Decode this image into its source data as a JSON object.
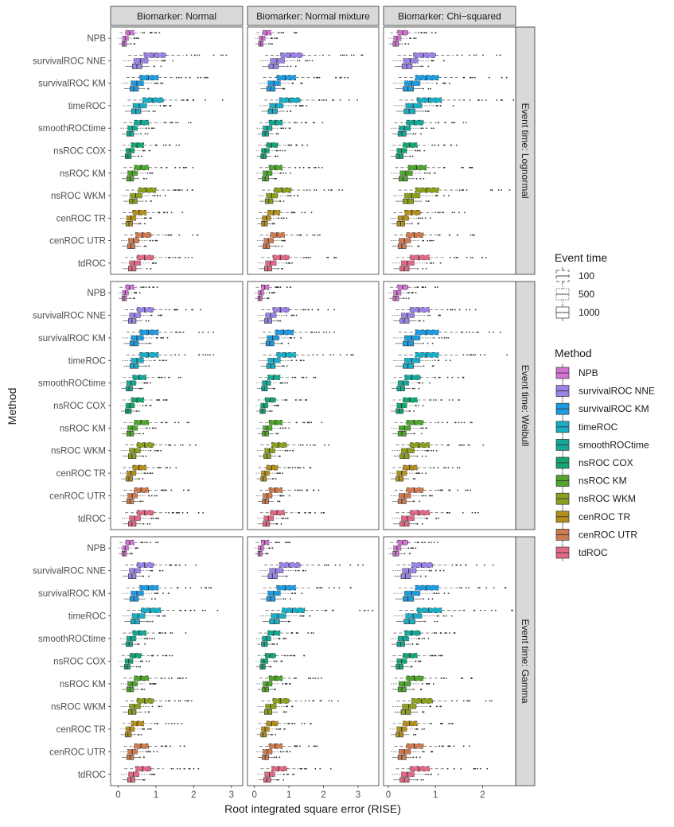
{
  "chart_data": {
    "type": "boxplot",
    "xlabel": "Root integrated square error (RISE)",
    "ylabel": "Method",
    "columns": [
      "Biomarker: Normal",
      "Biomarker: Normal mixture",
      "Biomarker: Chi−squared"
    ],
    "rows": [
      "Event time: Lognormal",
      "Event time: Weibull",
      "Event time: Gamma"
    ],
    "methods": [
      "NPB",
      "survivalROC NNE",
      "survivalROC KM",
      "timeROC",
      "smoothROCtime",
      "nsROC COX",
      "nsROC KM",
      "nsROC WKM",
      "cenROC TR",
      "cenROC UTR",
      "tdROC"
    ],
    "x_axes": [
      {
        "xlim": [
          -0.2,
          3.3
        ],
        "ticks": [
          0,
          1,
          2,
          3
        ]
      },
      {
        "xlim": [
          -0.2,
          3.6
        ],
        "ticks": [
          0,
          1,
          2,
          3
        ]
      },
      {
        "xlim": [
          -0.1,
          2.7
        ],
        "ticks": [
          0,
          1,
          2
        ]
      }
    ],
    "legend_event_time": {
      "title": "Event time",
      "items": [
        "100",
        "500",
        "1000"
      ]
    },
    "legend_method": {
      "title": "Method",
      "items": [
        {
          "name": "NPB",
          "color": "#D374D3"
        },
        {
          "name": "survivalROC NNE",
          "color": "#9B82E5"
        },
        {
          "name": "survivalROC KM",
          "color": "#1E9BDF"
        },
        {
          "name": "timeROC",
          "color": "#1AADC4"
        },
        {
          "name": "smoothROCtime",
          "color": "#14A896"
        },
        {
          "name": "nsROC COX",
          "color": "#14A66F"
        },
        {
          "name": "nsROC KM",
          "color": "#50A52E"
        },
        {
          "name": "nsROC WKM",
          "color": "#8E9E1E"
        },
        {
          "name": "cenROC TR",
          "color": "#B3901E"
        },
        {
          "name": "cenROC UTR",
          "color": "#CE7B52"
        },
        {
          "name": "tdROC",
          "color": "#E06A86"
        }
      ]
    },
    "panels": [
      {
        "row": "Event time: Lognormal",
        "col": "Biomarker: Normal",
        "medians_n100": [
          0.3,
          0.95,
          0.8,
          0.9,
          0.6,
          0.5,
          0.6,
          0.75,
          0.55,
          0.65,
          0.7
        ]
      },
      {
        "row": "Event time: Lognormal",
        "col": "Biomarker: Normal mixture",
        "medians_n100": [
          0.35,
          1.05,
          0.9,
          1.0,
          0.6,
          0.5,
          0.6,
          0.8,
          0.55,
          0.65,
          0.75
        ]
      },
      {
        "row": "Event time: Lognormal",
        "col": "Biomarker: Chi−squared",
        "medians_n100": [
          0.3,
          0.75,
          0.8,
          0.85,
          0.55,
          0.45,
          0.6,
          0.8,
          0.5,
          0.55,
          0.65
        ]
      },
      {
        "row": "Event time: Weibull",
        "col": "Biomarker: Normal",
        "medians_n100": [
          0.3,
          0.7,
          0.8,
          0.8,
          0.55,
          0.5,
          0.6,
          0.7,
          0.55,
          0.6,
          0.7
        ]
      },
      {
        "row": "Event time: Weibull",
        "col": "Biomarker: Normal mixture",
        "medians_n100": [
          0.3,
          0.75,
          0.85,
          0.9,
          0.55,
          0.45,
          0.6,
          0.7,
          0.5,
          0.6,
          0.65
        ]
      },
      {
        "row": "Event time: Weibull",
        "col": "Biomarker: Chi−squared",
        "medians_n100": [
          0.3,
          0.65,
          0.8,
          0.8,
          0.5,
          0.45,
          0.55,
          0.65,
          0.45,
          0.55,
          0.65
        ]
      },
      {
        "row": "Event time: Gamma",
        "col": "Biomarker: Normal",
        "medians_n100": [
          0.3,
          0.7,
          0.8,
          0.85,
          0.55,
          0.45,
          0.6,
          0.7,
          0.5,
          0.6,
          0.65
        ]
      },
      {
        "row": "Event time: Gamma",
        "col": "Biomarker: Normal mixture",
        "medians_n100": [
          0.3,
          1.0,
          0.9,
          1.1,
          0.55,
          0.45,
          0.6,
          0.75,
          0.5,
          0.6,
          0.7
        ]
      },
      {
        "row": "Event time: Gamma",
        "col": "Biomarker: Chi−squared",
        "medians_n100": [
          0.3,
          0.7,
          0.8,
          0.85,
          0.5,
          0.45,
          0.55,
          0.7,
          0.45,
          0.55,
          0.65
        ]
      }
    ]
  }
}
